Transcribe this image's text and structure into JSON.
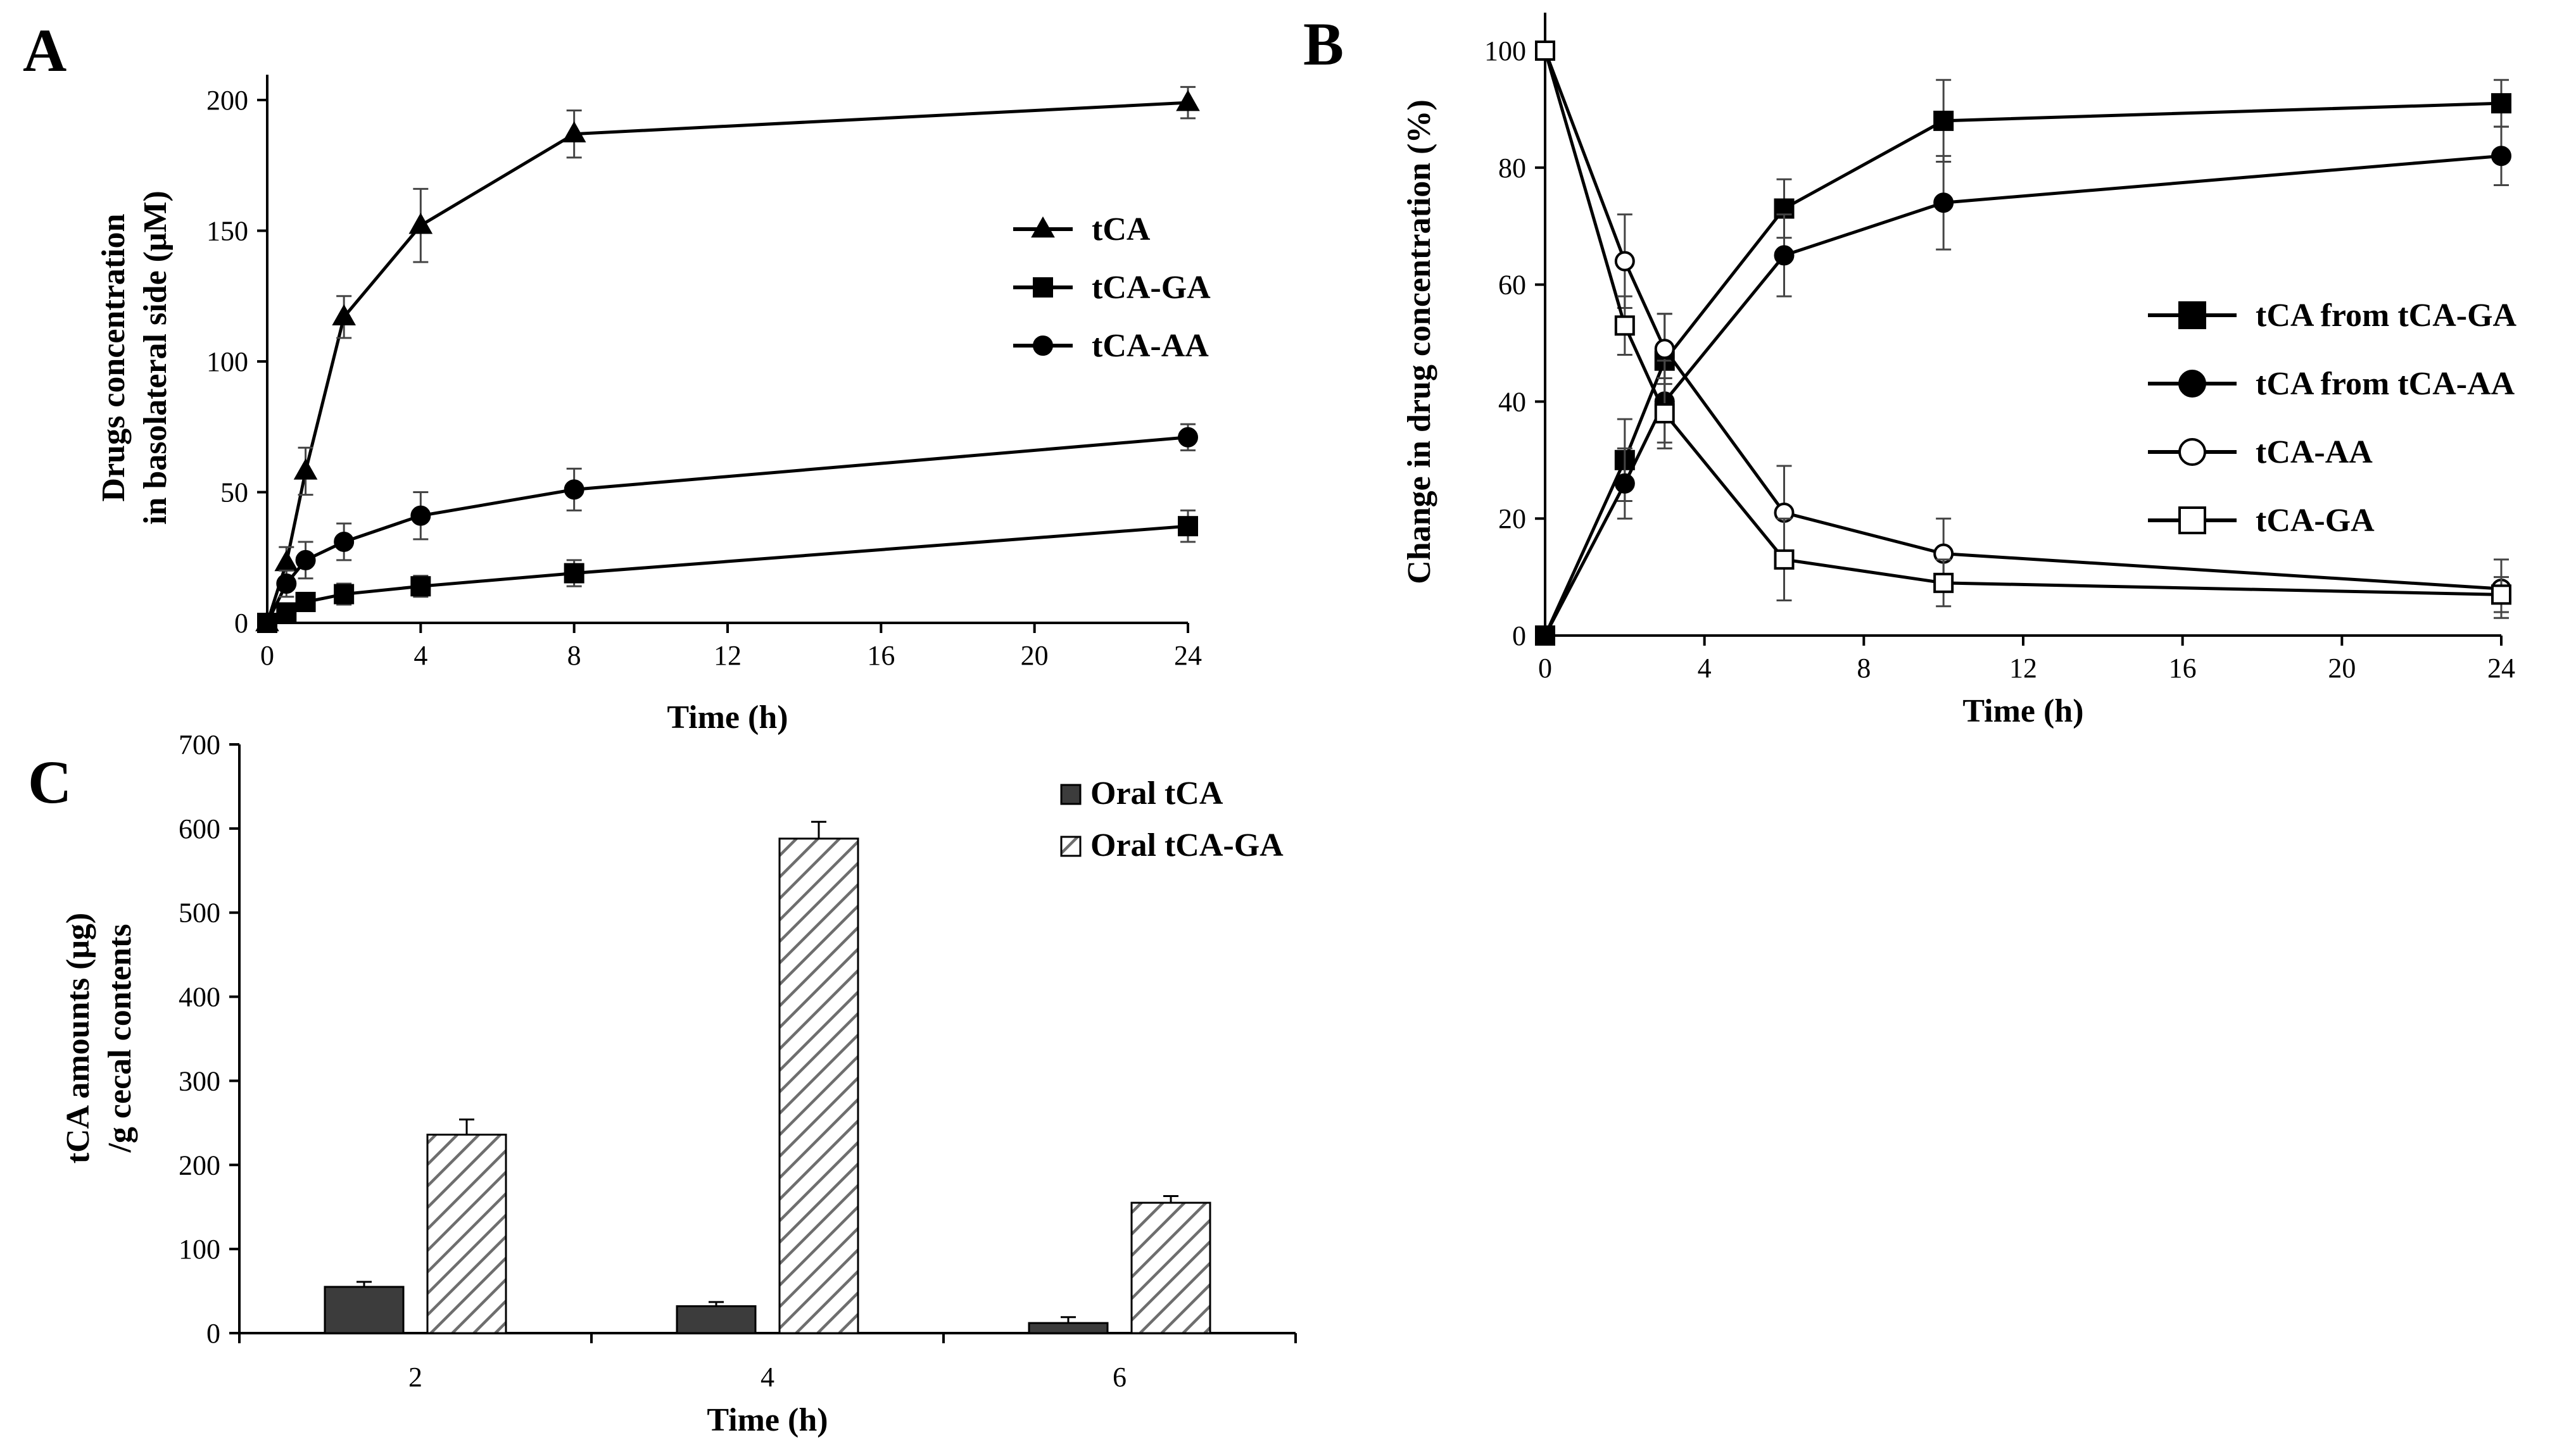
{
  "panels": [
    "A",
    "B",
    "C"
  ],
  "chart_data": [
    {
      "id": "A",
      "type": "line",
      "title": "",
      "xlabel": "Time (h)",
      "ylabel": [
        "Drugs  concentration",
        "in basolateral side (μM)"
      ],
      "xlim": [
        0,
        24
      ],
      "ylim": [
        0,
        200
      ],
      "xticks": [
        0,
        4,
        8,
        12,
        16,
        20,
        24
      ],
      "yticks": [
        0,
        50,
        100,
        150,
        200
      ],
      "grid": false,
      "legend": "center-right",
      "series": [
        {
          "name": "tCA",
          "marker": "triangle-filled",
          "x": [
            0,
            0.5,
            1,
            2,
            4,
            8,
            24
          ],
          "y": [
            0,
            23,
            58,
            117,
            152,
            187,
            199
          ],
          "err": [
            0,
            6,
            9,
            8,
            14,
            9,
            6
          ]
        },
        {
          "name": "tCA-GA",
          "marker": "square-filled",
          "x": [
            0,
            0.5,
            1,
            2,
            4,
            8,
            24
          ],
          "y": [
            0,
            4,
            8,
            11,
            14,
            19,
            37
          ],
          "err": [
            0,
            2,
            3,
            4,
            4,
            5,
            6
          ]
        },
        {
          "name": "tCA-AA",
          "marker": "circle-filled",
          "x": [
            0,
            0.5,
            1,
            2,
            4,
            8,
            24
          ],
          "y": [
            0,
            15,
            24,
            31,
            41,
            51,
            71
          ],
          "err": [
            0,
            5,
            7,
            7,
            9,
            8,
            5
          ]
        }
      ]
    },
    {
      "id": "B",
      "type": "line",
      "title": "",
      "xlabel": "Time (h)",
      "ylabel": "Change in drug concentration  (%)",
      "xlim": [
        0,
        24
      ],
      "ylim": [
        0,
        100
      ],
      "xticks": [
        0,
        4,
        8,
        12,
        16,
        20,
        24
      ],
      "yticks": [
        0,
        20,
        40,
        60,
        80,
        100
      ],
      "grid": false,
      "legend": "center-right",
      "series": [
        {
          "name": "tCA from tCA-GA",
          "marker": "square-filled",
          "x": [
            0,
            2,
            3,
            6,
            10,
            24
          ],
          "y": [
            0,
            30,
            47,
            73,
            88,
            91
          ],
          "err": [
            0,
            7,
            8,
            5,
            7,
            4
          ]
        },
        {
          "name": "tCA from tCA-AA",
          "marker": "circle-filled",
          "x": [
            0,
            2,
            3,
            6,
            10,
            24
          ],
          "y": [
            0,
            26,
            40,
            65,
            74,
            82
          ],
          "err": [
            0,
            6,
            7,
            7,
            8,
            5
          ]
        },
        {
          "name": "tCA-AA",
          "marker": "circle-open",
          "x": [
            0,
            2,
            3,
            6,
            10,
            24
          ],
          "y": [
            100,
            64,
            49,
            21,
            14,
            8
          ],
          "err": [
            0,
            8,
            6,
            8,
            6,
            5
          ]
        },
        {
          "name": "tCA-GA",
          "marker": "square-open",
          "x": [
            0,
            2,
            3,
            6,
            10,
            24
          ],
          "y": [
            100,
            53,
            38,
            13,
            9,
            7
          ],
          "err": [
            0,
            5,
            6,
            7,
            4,
            3
          ]
        }
      ]
    },
    {
      "id": "C",
      "type": "bar",
      "title": "",
      "xlabel": "Time (h)",
      "ylabel": [
        "tCA amounts (μg)",
        "/g cecal contents"
      ],
      "categories": [
        "2",
        "4",
        "6"
      ],
      "ylim": [
        0,
        700
      ],
      "yticks": [
        0,
        100,
        200,
        300,
        400,
        500,
        600,
        700
      ],
      "grid": false,
      "legend": "top-right",
      "series": [
        {
          "name": "Oral tCA",
          "fill": "solid-dark",
          "values": [
            55,
            32,
            12
          ],
          "err": [
            6,
            5,
            7
          ]
        },
        {
          "name": "Oral tCA-GA",
          "fill": "hatched",
          "values": [
            236,
            588,
            155
          ],
          "err": [
            18,
            20,
            8
          ]
        }
      ]
    }
  ]
}
